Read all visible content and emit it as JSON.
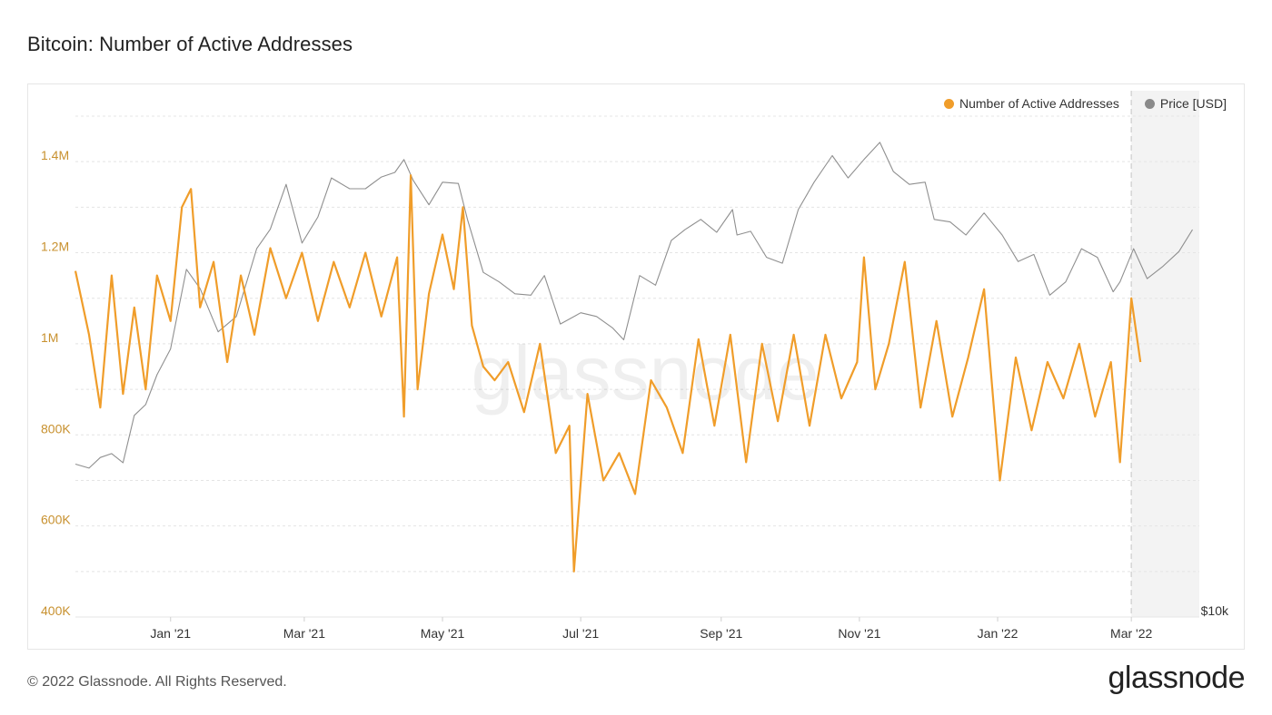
{
  "page": {
    "title": "Bitcoin: Number of Active Addresses",
    "copyright": "© 2022 Glassnode. All Rights Reserved.",
    "logo_text": "glassnode",
    "watermark": "glassnode"
  },
  "legend": [
    {
      "label": "Number of Active Addresses",
      "color": "#f09d2a"
    },
    {
      "label": "Price [USD]",
      "color": "#8a8a8a"
    }
  ],
  "chart_data": {
    "type": "line",
    "title": "Bitcoin: Number of Active Addresses",
    "x_range": [
      "2020-11-20",
      "2022-03-31"
    ],
    "x_ticks": [
      {
        "date": "2021-01-01",
        "label": "Jan '21"
      },
      {
        "date": "2021-03-01",
        "label": "Mar '21"
      },
      {
        "date": "2021-05-01",
        "label": "May '21"
      },
      {
        "date": "2021-07-01",
        "label": "Jul '21"
      },
      {
        "date": "2021-09-01",
        "label": "Sep '21"
      },
      {
        "date": "2021-11-01",
        "label": "Nov '21"
      },
      {
        "date": "2022-01-01",
        "label": "Jan '22"
      },
      {
        "date": "2022-03-01",
        "label": "Mar '22"
      }
    ],
    "y_left": {
      "label": "Number of Active Addresses",
      "range": [
        400000,
        1500000
      ],
      "ticks": [
        {
          "value": 400000,
          "label": "400K"
        },
        {
          "value": 600000,
          "label": "600K"
        },
        {
          "value": 800000,
          "label": "800K"
        },
        {
          "value": 1000000,
          "label": "1M"
        },
        {
          "value": 1200000,
          "label": "1.2M"
        },
        {
          "value": 1400000,
          "label": "1.4M"
        }
      ],
      "color": "#c8912f"
    },
    "y_right": {
      "label": "Price [USD]",
      "scale": "log",
      "range": [
        10000,
        75000
      ],
      "ticks": [
        {
          "value": 10000,
          "label": "$10k"
        }
      ]
    },
    "grid": true,
    "legend_position": "top-right",
    "shaded_region_start": "2022-03-01",
    "series": [
      {
        "name": "Number of Active Addresses",
        "axis": "left",
        "color": "#f09d2a",
        "x": [
          "2020-11-20",
          "2020-11-26",
          "2020-12-01",
          "2020-12-06",
          "2020-12-11",
          "2020-12-16",
          "2020-12-21",
          "2020-12-26",
          "2021-01-01",
          "2021-01-06",
          "2021-01-10",
          "2021-01-14",
          "2021-01-20",
          "2021-01-26",
          "2021-02-01",
          "2021-02-07",
          "2021-02-14",
          "2021-02-21",
          "2021-02-28",
          "2021-03-07",
          "2021-03-14",
          "2021-03-21",
          "2021-03-28",
          "2021-04-04",
          "2021-04-11",
          "2021-04-14",
          "2021-04-17",
          "2021-04-20",
          "2021-04-25",
          "2021-05-01",
          "2021-05-06",
          "2021-05-10",
          "2021-05-14",
          "2021-05-19",
          "2021-05-24",
          "2021-05-30",
          "2021-06-06",
          "2021-06-13",
          "2021-06-20",
          "2021-06-26",
          "2021-06-28",
          "2021-07-04",
          "2021-07-11",
          "2021-07-18",
          "2021-07-25",
          "2021-08-01",
          "2021-08-08",
          "2021-08-15",
          "2021-08-22",
          "2021-08-29",
          "2021-09-05",
          "2021-09-12",
          "2021-09-19",
          "2021-09-26",
          "2021-10-03",
          "2021-10-10",
          "2021-10-17",
          "2021-10-24",
          "2021-10-31",
          "2021-11-03",
          "2021-11-08",
          "2021-11-14",
          "2021-11-21",
          "2021-11-28",
          "2021-12-05",
          "2021-12-12",
          "2021-12-19",
          "2021-12-26",
          "2022-01-02",
          "2022-01-09",
          "2022-01-16",
          "2022-01-23",
          "2022-01-30",
          "2022-02-06",
          "2022-02-13",
          "2022-02-20",
          "2022-02-24",
          "2022-03-01",
          "2022-03-05"
        ],
        "y": [
          1160000,
          1020000,
          860000,
          1150000,
          890000,
          1080000,
          900000,
          1150000,
          1050000,
          1300000,
          1340000,
          1080000,
          1180000,
          960000,
          1150000,
          1020000,
          1210000,
          1100000,
          1200000,
          1050000,
          1180000,
          1080000,
          1200000,
          1060000,
          1190000,
          840000,
          1370000,
          900000,
          1110000,
          1240000,
          1120000,
          1300000,
          1040000,
          950000,
          920000,
          960000,
          850000,
          1000000,
          760000,
          820000,
          500000,
          890000,
          700000,
          760000,
          670000,
          920000,
          860000,
          760000,
          1010000,
          820000,
          1020000,
          740000,
          1000000,
          830000,
          1020000,
          820000,
          1020000,
          880000,
          960000,
          1190000,
          900000,
          1000000,
          1180000,
          860000,
          1050000,
          840000,
          970000,
          1120000,
          700000,
          970000,
          810000,
          960000,
          880000,
          1000000,
          840000,
          960000,
          740000,
          1100000,
          960000
        ]
      },
      {
        "name": "Price [USD]",
        "axis": "right",
        "color": "#8f8f8f",
        "x": [
          "2020-11-20",
          "2020-11-26",
          "2020-12-01",
          "2020-12-06",
          "2020-12-11",
          "2020-12-16",
          "2020-12-21",
          "2020-12-26",
          "2021-01-01",
          "2021-01-08",
          "2021-01-14",
          "2021-01-22",
          "2021-01-30",
          "2021-02-08",
          "2021-02-14",
          "2021-02-21",
          "2021-02-28",
          "2021-03-07",
          "2021-03-13",
          "2021-03-21",
          "2021-03-28",
          "2021-04-04",
          "2021-04-10",
          "2021-04-14",
          "2021-04-18",
          "2021-04-25",
          "2021-05-01",
          "2021-05-08",
          "2021-05-12",
          "2021-05-19",
          "2021-05-26",
          "2021-06-02",
          "2021-06-09",
          "2021-06-15",
          "2021-06-22",
          "2021-07-01",
          "2021-07-08",
          "2021-07-15",
          "2021-07-20",
          "2021-07-27",
          "2021-08-03",
          "2021-08-10",
          "2021-08-16",
          "2021-08-23",
          "2021-08-30",
          "2021-09-06",
          "2021-09-08",
          "2021-09-14",
          "2021-09-21",
          "2021-09-28",
          "2021-10-05",
          "2021-10-12",
          "2021-10-20",
          "2021-10-27",
          "2021-11-03",
          "2021-11-10",
          "2021-11-16",
          "2021-11-23",
          "2021-11-30",
          "2021-12-04",
          "2021-12-11",
          "2021-12-18",
          "2021-12-26",
          "2022-01-03",
          "2022-01-10",
          "2022-01-17",
          "2022-01-24",
          "2022-01-31",
          "2022-02-07",
          "2022-02-14",
          "2022-02-21",
          "2022-02-24",
          "2022-03-02",
          "2022-03-08",
          "2022-03-15",
          "2022-03-22",
          "2022-03-28"
        ],
        "y": [
          18500,
          18200,
          19000,
          19300,
          18600,
          22500,
          23500,
          26500,
          29400,
          40500,
          37500,
          31500,
          33500,
          44000,
          47600,
          57000,
          45000,
          50000,
          58500,
          56000,
          56000,
          58700,
          59800,
          63000,
          58000,
          52500,
          57500,
          57200,
          49500,
          40000,
          38500,
          36700,
          36500,
          39500,
          32500,
          34000,
          33500,
          32000,
          30500,
          39500,
          38000,
          45500,
          47500,
          49500,
          47000,
          51500,
          46500,
          47200,
          42500,
          41500,
          51500,
          57500,
          64000,
          58500,
          63000,
          67500,
          60000,
          57000,
          57500,
          49500,
          49000,
          46500,
          50800,
          46500,
          41800,
          43000,
          36500,
          38500,
          44000,
          42500,
          37000,
          38500,
          44000,
          39000,
          41000,
          43500,
          47500
        ]
      }
    ]
  }
}
